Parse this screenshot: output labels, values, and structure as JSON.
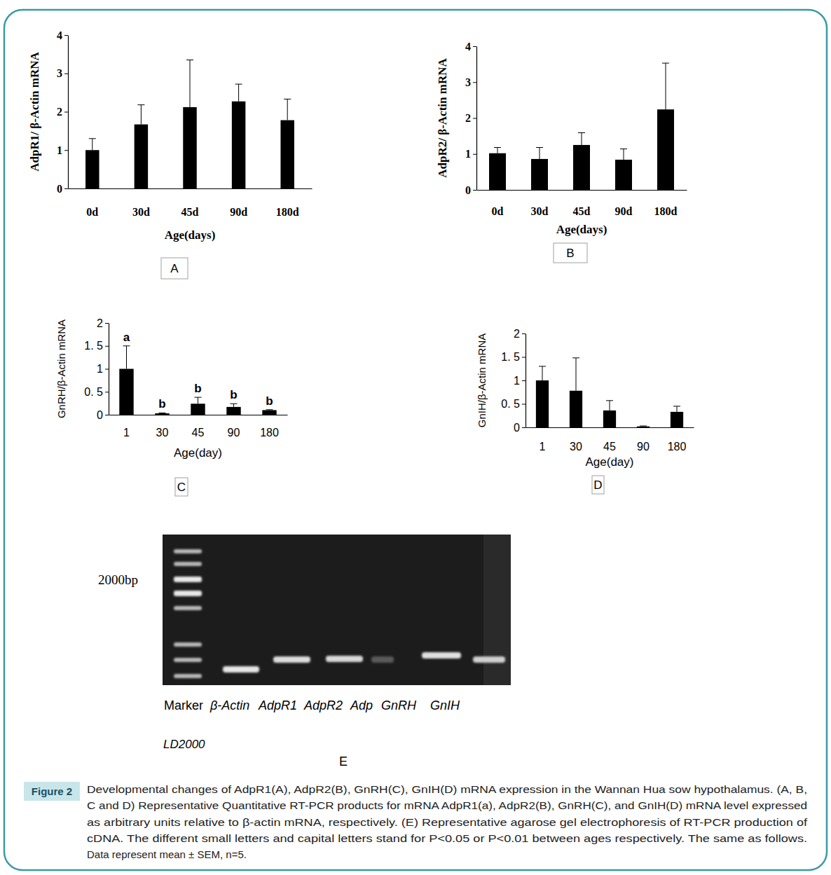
{
  "chart_data": [
    {
      "type": "bar",
      "title": "A",
      "x_label": "Age(days)",
      "y_label": "AdpR1/ β-Actin mRNA",
      "categories": [
        "0d",
        "30d",
        "45d",
        "90d",
        "180d"
      ],
      "values": [
        1.0,
        1.67,
        2.12,
        2.27,
        1.78
      ],
      "errors": [
        0.3,
        0.51,
        1.23,
        0.45,
        0.55
      ],
      "color": "#000000",
      "ylim": [
        0,
        4
      ],
      "yticks": [
        0,
        1,
        2,
        3,
        4
      ]
    },
    {
      "type": "bar",
      "title": "B",
      "x_label": "Age(days)",
      "y_label": "AdpR2/ β-Actin mRNA",
      "categories": [
        "0d",
        "30d",
        "45d",
        "90d",
        "180d"
      ],
      "values": [
        1.02,
        0.86,
        1.25,
        0.84,
        2.24
      ],
      "errors": [
        0.16,
        0.32,
        0.34,
        0.3,
        1.29
      ],
      "color": "#000000",
      "ylim": [
        0,
        4
      ],
      "yticks": [
        0,
        1,
        2,
        3,
        4
      ]
    },
    {
      "type": "bar",
      "title": "C",
      "x_label": "Age(day)",
      "y_label": "GnRH/β-Actin mRNA",
      "categories": [
        "1",
        "30",
        "45",
        "90",
        "180"
      ],
      "values": [
        1.0,
        0.03,
        0.24,
        0.17,
        0.1
      ],
      "errors": [
        0.5,
        0.01,
        0.14,
        0.07,
        0.01
      ],
      "letters": [
        "a",
        "b",
        "b",
        "b",
        "b"
      ],
      "color": "#000000",
      "ylim": [
        0,
        2
      ],
      "yticks": [
        0,
        {
          "value": 0.5,
          "label": "0. 5"
        },
        1,
        {
          "value": 1.5,
          "label": "1. 5"
        },
        2
      ]
    },
    {
      "type": "bar",
      "title": "D",
      "x_label": "Age(day)",
      "y_label": "GnIH/β-Actin mRNA",
      "categories": [
        "1",
        "30",
        "45",
        "90",
        "180"
      ],
      "values": [
        1.0,
        0.78,
        0.36,
        0.02,
        0.33
      ],
      "errors": [
        0.3,
        0.7,
        0.21,
        0.01,
        0.12
      ],
      "color": "#000000",
      "ylim": [
        0,
        2
      ],
      "yticks": [
        0,
        {
          "value": 0.5,
          "label": "0. 5"
        },
        1,
        {
          "value": 1.5,
          "label": "1. 5"
        },
        2
      ]
    }
  ],
  "figure": {
    "gel": {
      "panel": "E",
      "size_label": "2000bp",
      "lanes": [
        "Marker",
        "β-Actin",
        "AdpR1",
        "AdpR2",
        "Adp",
        "GnRH",
        "GnIH"
      ],
      "ladder_name": "LD2000"
    },
    "caption": {
      "label": "Figure 2",
      "lines": [
        "Developmental changes of AdpR1(A), AdpR2(B), GnRH(C), GnIH(D) mRNA expression in the Wannan Hua sow hypothalamus.  (A, B,",
        "C and D) Representative Quantitative RT-PCR products for mRNA AdpR1(a), AdpR2(B), GnRH(C), and GnIH(D) mRNA level expressed",
        "as arbitrary units relative to β-actin mRNA, respectively. (E) Representative agarose gel electrophoresis of RT-PCR production of",
        "cDNA. The different small letters and capital letters stand for P<0.05 or P<0.01 between ages respectively. The same as follows.",
        "Data represent mean ± SEM, n=5."
      ]
    }
  }
}
